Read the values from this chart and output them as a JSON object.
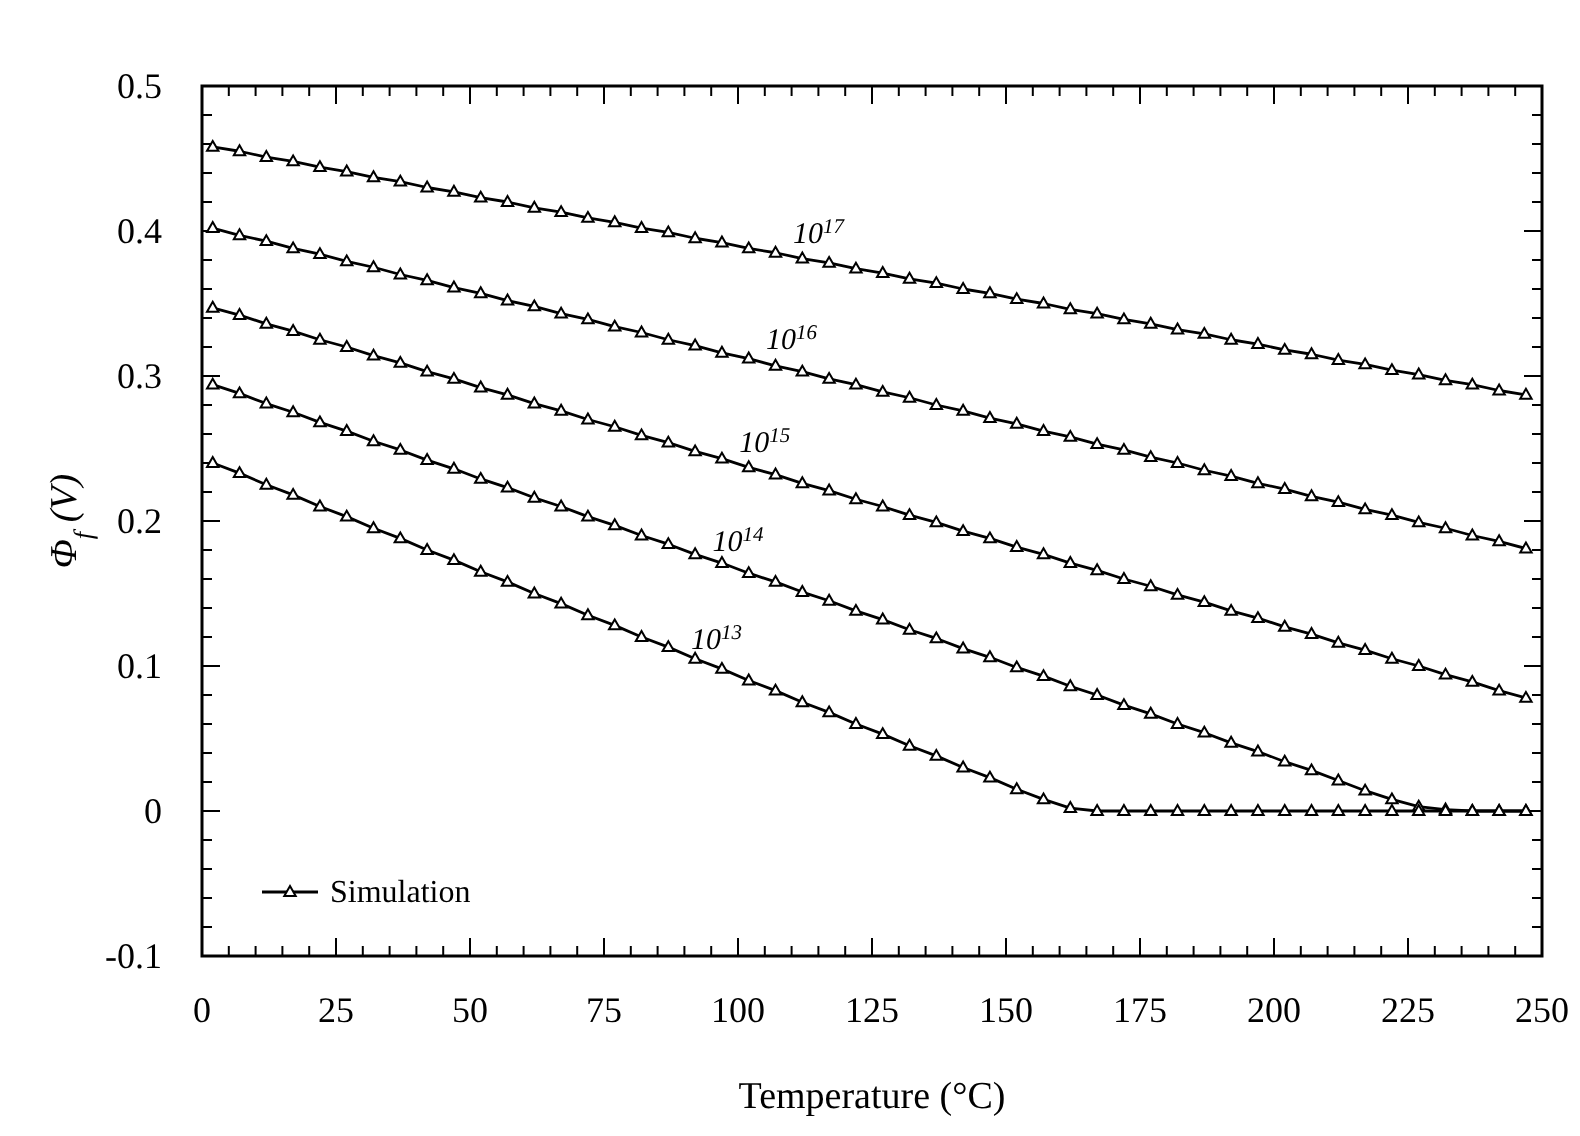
{
  "chart_data": {
    "type": "line",
    "xlabel": "Temperature (°C)",
    "ylabel": "Φ$_{f}$ (V)",
    "marker": "triangle",
    "line_style": "solid",
    "legend": "bottom left",
    "xlim": [
      0,
      250
    ],
    "xticks": [
      0,
      {
        "value": 5,
        "label": null
      },
      {
        "value": 10,
        "label": null
      },
      {
        "value": 15,
        "label": null
      },
      {
        "value": 20,
        "label": null
      },
      25,
      {
        "value": 30,
        "label": null
      },
      {
        "value": 35,
        "label": null
      },
      {
        "value": 40,
        "label": null
      },
      {
        "value": 45,
        "label": null
      },
      50,
      {
        "value": 55,
        "label": null
      },
      {
        "value": 60,
        "label": null
      },
      {
        "value": 65,
        "label": null
      },
      {
        "value": 70,
        "label": null
      },
      75,
      {
        "value": 80,
        "label": null
      },
      {
        "value": 85,
        "label": null
      },
      {
        "value": 90,
        "label": null
      },
      {
        "value": 95,
        "label": null
      },
      100,
      {
        "value": 105,
        "label": null
      },
      {
        "value": 110,
        "label": null
      },
      {
        "value": 115,
        "label": null
      },
      {
        "value": 120,
        "label": null
      },
      125,
      {
        "value": 130,
        "label": null
      },
      {
        "value": 135,
        "label": null
      },
      {
        "value": 140,
        "label": null
      },
      {
        "value": 145,
        "label": null
      },
      150,
      {
        "value": 155,
        "label": null
      },
      {
        "value": 160,
        "label": null
      },
      {
        "value": 165,
        "label": null
      },
      {
        "value": 170,
        "label": null
      },
      175,
      {
        "value": 180,
        "label": null
      },
      {
        "value": 185,
        "label": null
      },
      {
        "value": 190,
        "label": null
      },
      {
        "value": 195,
        "label": null
      },
      200,
      {
        "value": 205,
        "label": null
      },
      {
        "value": 210,
        "label": null
      },
      {
        "value": 215,
        "label": null
      },
      {
        "value": 220,
        "label": null
      },
      225,
      {
        "value": 230,
        "label": null
      },
      {
        "value": 235,
        "label": null
      },
      {
        "value": 240,
        "label": null
      },
      {
        "value": 245,
        "label": null
      },
      250
    ],
    "ylim": [
      -0.1,
      0.5
    ],
    "yticks": [
      -0.1,
      {
        "value": -0.08,
        "label": null
      },
      {
        "value": -0.06,
        "label": null
      },
      {
        "value": -0.04,
        "label": null
      },
      {
        "value": -0.02,
        "label": null
      },
      0,
      {
        "value": 0.02,
        "label": null
      },
      {
        "value": 0.04,
        "label": null
      },
      {
        "value": 0.06,
        "label": null
      },
      {
        "value": 0.08,
        "label": null
      },
      0.1,
      {
        "value": 0.12,
        "label": null
      },
      {
        "value": 0.14,
        "label": null
      },
      {
        "value": 0.16,
        "label": null
      },
      {
        "value": 0.18,
        "label": null
      },
      0.2,
      {
        "value": 0.22,
        "label": null
      },
      {
        "value": 0.24,
        "label": null
      },
      {
        "value": 0.26,
        "label": null
      },
      {
        "value": 0.28,
        "label": null
      },
      0.3,
      {
        "value": 0.32,
        "label": null
      },
      {
        "value": 0.34,
        "label": null
      },
      {
        "value": 0.36,
        "label": null
      },
      {
        "value": 0.38,
        "label": null
      },
      0.4,
      {
        "value": 0.42,
        "label": null
      },
      {
        "value": 0.44,
        "label": null
      },
      {
        "value": 0.46,
        "label": null
      },
      {
        "value": 0.48,
        "label": null
      },
      0.5
    ],
    "x": [
      2,
      7,
      12,
      17,
      22,
      27,
      32,
      37,
      42,
      47,
      52,
      57,
      62,
      67,
      72,
      77,
      82,
      87,
      92,
      97,
      102,
      107,
      112,
      117,
      122,
      127,
      132,
      137,
      142,
      147,
      152,
      157,
      162,
      167,
      172,
      177,
      182,
      187,
      192,
      197,
      202,
      207,
      212,
      217,
      222,
      227,
      232,
      237,
      242,
      247
    ],
    "series": [
      {
        "name": "Simulation",
        "color": "#000000",
        "values": [
          0.458,
          0.455,
          0.451,
          0.448,
          0.444,
          0.441,
          0.437,
          0.434,
          0.43,
          0.427,
          0.423,
          0.42,
          0.416,
          0.413,
          0.409,
          0.406,
          0.402,
          0.399,
          0.395,
          0.392,
          0.388,
          0.385,
          0.381,
          0.378,
          0.374,
          0.371,
          0.367,
          0.364,
          0.36,
          0.357,
          0.353,
          0.35,
          0.346,
          0.343,
          0.339,
          0.336,
          0.332,
          0.329,
          0.325,
          0.322,
          0.318,
          0.315,
          0.311,
          0.308,
          0.304,
          0.301,
          0.297,
          0.294,
          0.29,
          0.287
        ]
      },
      {
        "color": "#000000",
        "values": [
          0.402,
          0.397,
          0.393,
          0.388,
          0.384,
          0.379,
          0.375,
          0.37,
          0.366,
          0.361,
          0.357,
          0.352,
          0.348,
          0.343,
          0.339,
          0.334,
          0.33,
          0.325,
          0.321,
          0.316,
          0.312,
          0.307,
          0.303,
          0.298,
          0.294,
          0.289,
          0.285,
          0.28,
          0.276,
          0.271,
          0.267,
          0.262,
          0.258,
          0.253,
          0.249,
          0.244,
          0.24,
          0.235,
          0.231,
          0.226,
          0.222,
          0.217,
          0.213,
          0.208,
          0.204,
          0.199,
          0.195,
          0.19,
          0.186,
          0.181
        ]
      },
      {
        "color": "#000000",
        "values": [
          0.347,
          0.342,
          0.336,
          0.331,
          0.325,
          0.32,
          0.314,
          0.309,
          0.303,
          0.298,
          0.292,
          0.287,
          0.281,
          0.276,
          0.27,
          0.265,
          0.259,
          0.254,
          0.248,
          0.243,
          0.237,
          0.232,
          0.226,
          0.221,
          0.215,
          0.21,
          0.204,
          0.199,
          0.193,
          0.188,
          0.182,
          0.177,
          0.171,
          0.166,
          0.16,
          0.155,
          0.149,
          0.144,
          0.138,
          0.133,
          0.127,
          0.122,
          0.116,
          0.111,
          0.105,
          0.1,
          0.094,
          0.089,
          0.083,
          0.078
        ]
      },
      {
        "color": "#000000",
        "values": [
          0.294,
          0.288,
          0.281,
          0.275,
          0.268,
          0.262,
          0.255,
          0.249,
          0.242,
          0.236,
          0.229,
          0.223,
          0.216,
          0.21,
          0.203,
          0.197,
          0.19,
          0.184,
          0.177,
          0.171,
          0.164,
          0.158,
          0.151,
          0.145,
          0.138,
          0.132,
          0.125,
          0.119,
          0.112,
          0.106,
          0.099,
          0.093,
          0.086,
          0.08,
          0.073,
          0.067,
          0.06,
          0.054,
          0.047,
          0.041,
          0.034,
          0.028,
          0.021,
          0.014,
          0.008,
          0.003,
          0.001,
          0,
          0,
          0
        ]
      },
      {
        "color": "#000000",
        "values": [
          0.24,
          0.233,
          0.225,
          0.218,
          0.21,
          0.203,
          0.195,
          0.188,
          0.18,
          0.173,
          0.165,
          0.158,
          0.15,
          0.143,
          0.135,
          0.128,
          0.12,
          0.113,
          0.105,
          0.098,
          0.09,
          0.083,
          0.075,
          0.068,
          0.06,
          0.053,
          0.045,
          0.038,
          0.03,
          0.023,
          0.015,
          0.008,
          0.002,
          0,
          0,
          0,
          0,
          0,
          0,
          0,
          0,
          0,
          0,
          0,
          0,
          0,
          0,
          0,
          0,
          0
        ]
      }
    ],
    "annotations": [
      {
        "text": "10$^{17}$",
        "x": 115,
        "y": 0.379
      },
      {
        "text": "10$^{16}$",
        "x": 110,
        "y": 0.306
      },
      {
        "text": "10$^{15}$",
        "x": 105,
        "y": 0.235
      },
      {
        "text": "10$^{14}$",
        "x": 100,
        "y": 0.167
      },
      {
        "text": "10$^{13}$",
        "x": 96,
        "y": 0.099
      }
    ]
  }
}
